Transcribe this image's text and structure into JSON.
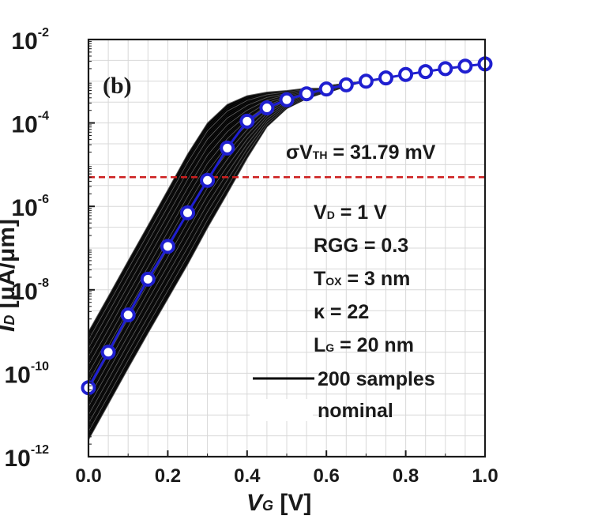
{
  "chart_data": {
    "type": "line",
    "panel_label": "(b)",
    "xlabel": {
      "main": "V",
      "sub": "G",
      "unit": " [V]"
    },
    "ylabel": {
      "main": "I",
      "sub": "D",
      "unit": " [μA/μm]"
    },
    "xlim": [
      0.0,
      1.0
    ],
    "ylim_log10": [
      -12,
      -2
    ],
    "y_scale": "log",
    "grid": true,
    "x_ticks": [
      "0.0",
      "0.2",
      "0.4",
      "0.6",
      "0.8",
      "1.0"
    ],
    "y_tick_base": "10",
    "y_tick_exponents": [
      "-2",
      "-4",
      "-6",
      "-8",
      "-10",
      "-12"
    ],
    "colors": {
      "nominal": "#1f1fd0",
      "samples": "#000000",
      "threshold_line": "#cc1f1f",
      "grid": "#d8d8d8"
    },
    "threshold_line": {
      "y": 5e-06,
      "style": "dashed"
    },
    "annotations": {
      "sigma": {
        "pre": "σV",
        "sub": "TH",
        "post": " = 31.79 mV"
      },
      "vd": {
        "pre": "V",
        "sub": "D",
        "post": " = 1 V"
      },
      "rgg": {
        "pre": "RGG = 0.3",
        "sub": "",
        "post": ""
      },
      "tox": {
        "pre": "T",
        "sub": "OX",
        "post": " = 3 nm"
      },
      "kappa": {
        "pre": "κ = 22",
        "sub": "",
        "post": ""
      },
      "lg": {
        "pre": "L",
        "sub": "G",
        "post": " = 20 nm"
      }
    },
    "legend": {
      "position": "lower-right",
      "entries": [
        {
          "label": "200 samples",
          "style": "black-line"
        },
        {
          "label": "nominal",
          "style": "blue-line-circles"
        }
      ]
    },
    "nominal_series": {
      "x": [
        0.0,
        0.05,
        0.1,
        0.15,
        0.2,
        0.25,
        0.3,
        0.35,
        0.4,
        0.45,
        0.5,
        0.55,
        0.6,
        0.65,
        0.7,
        0.75,
        0.8,
        0.85,
        0.9,
        0.95,
        1.0
      ],
      "y": [
        4.5e-11,
        3.2e-10,
        2.5e-09,
        1.8e-08,
        1.1e-07,
        7e-07,
        4.2e-06,
        2.5e-05,
        0.00011,
        0.00023,
        0.00036,
        0.0005,
        0.00065,
        0.00082,
        0.001,
        0.0012,
        0.00145,
        0.0017,
        0.002,
        0.0023,
        0.0026
      ]
    },
    "samples_band": {
      "count": 200,
      "x": [
        0.0,
        0.05,
        0.1,
        0.15,
        0.2,
        0.25,
        0.3,
        0.35,
        0.4,
        0.45,
        0.5,
        0.55,
        0.6
      ],
      "upper": [
        1e-09,
        7e-09,
        5e-08,
        3.5e-07,
        2.5e-06,
        1.8e-05,
        0.0001,
        0.00028,
        0.00045,
        0.00055,
        0.0006,
        0.00068,
        0.00068
      ],
      "lower": [
        2.5e-12,
        1.8e-11,
        1.3e-10,
        9e-10,
        6e-09,
        4e-08,
        3e-07,
        2e-06,
        1.4e-05,
        8e-05,
        0.00022,
        0.00038,
        0.00055
      ]
    }
  }
}
